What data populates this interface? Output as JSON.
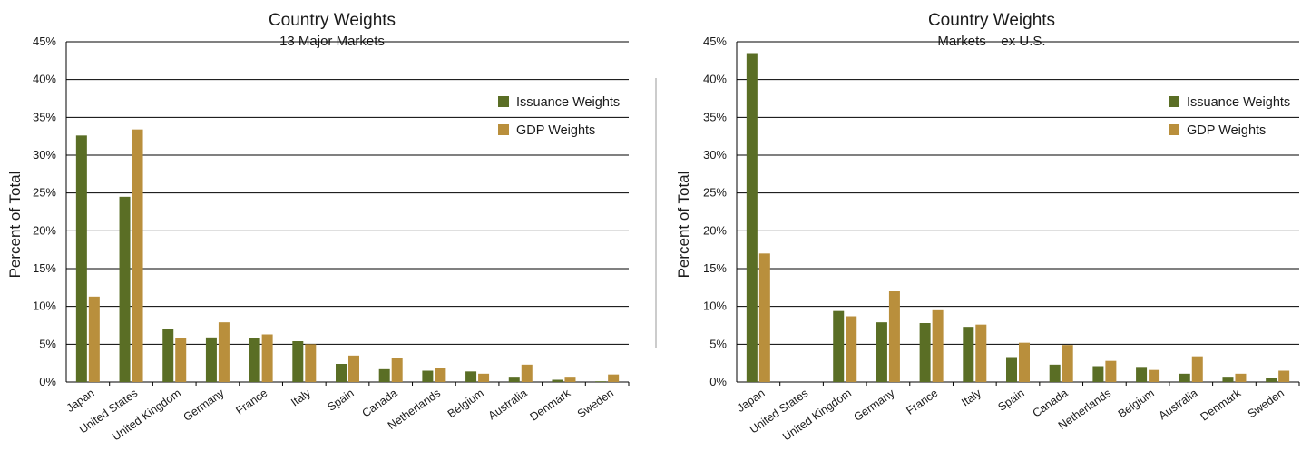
{
  "colors": {
    "issuance": "#5a6e25",
    "gdp": "#b98f3c",
    "gridline": "#000000",
    "divider": "#9a9a9a"
  },
  "chart_data": [
    {
      "type": "bar",
      "title": "Country Weights",
      "subtitle": "13 Major Markets",
      "ylabel": "Percent of Total",
      "xlabel": "",
      "ylim": [
        0,
        45
      ],
      "yticks": [
        "0%",
        "5%",
        "10%",
        "15%",
        "20%",
        "25%",
        "30%",
        "35%",
        "40%",
        "45%"
      ],
      "grid": true,
      "legend_position": "top-right",
      "categories": [
        "Japan",
        "United States",
        "United Kingdom",
        "Germany",
        "France",
        "Italy",
        "Spain",
        "Canada",
        "Netherlands",
        "Belgium",
        "Australia",
        "Denmark",
        "Sweden"
      ],
      "series": [
        {
          "name": "Issuance Weights",
          "values": [
            32.6,
            24.5,
            7.0,
            5.9,
            5.8,
            5.4,
            2.4,
            1.7,
            1.5,
            1.4,
            0.7,
            0.3,
            0.1
          ]
        },
        {
          "name": "GDP Weights",
          "values": [
            11.3,
            33.4,
            5.8,
            7.9,
            6.3,
            5.0,
            3.5,
            3.2,
            1.9,
            1.1,
            2.3,
            0.7,
            1.0
          ]
        }
      ]
    },
    {
      "type": "bar",
      "title": "Country Weights",
      "subtitle": "Markets – ex U.S.",
      "ylabel": "Percent of Total",
      "xlabel": "",
      "ylim": [
        0,
        45
      ],
      "yticks": [
        "0%",
        "5%",
        "10%",
        "15%",
        "20%",
        "25%",
        "30%",
        "35%",
        "40%",
        "45%"
      ],
      "grid": true,
      "legend_position": "top-right",
      "categories": [
        "Japan",
        "United States",
        "United Kingdom",
        "Germany",
        "France",
        "Italy",
        "Spain",
        "Canada",
        "Netherlands",
        "Belgium",
        "Australia",
        "Denmark",
        "Sweden"
      ],
      "series": [
        {
          "name": "Issuance Weights",
          "values": [
            43.5,
            0,
            9.4,
            7.9,
            7.8,
            7.3,
            3.3,
            2.3,
            2.1,
            2.0,
            1.1,
            0.7,
            0.5
          ]
        },
        {
          "name": "GDP Weights",
          "values": [
            17.0,
            0,
            8.7,
            12.0,
            9.5,
            7.6,
            5.2,
            4.9,
            2.8,
            1.6,
            3.4,
            1.1,
            1.5
          ]
        }
      ]
    }
  ]
}
